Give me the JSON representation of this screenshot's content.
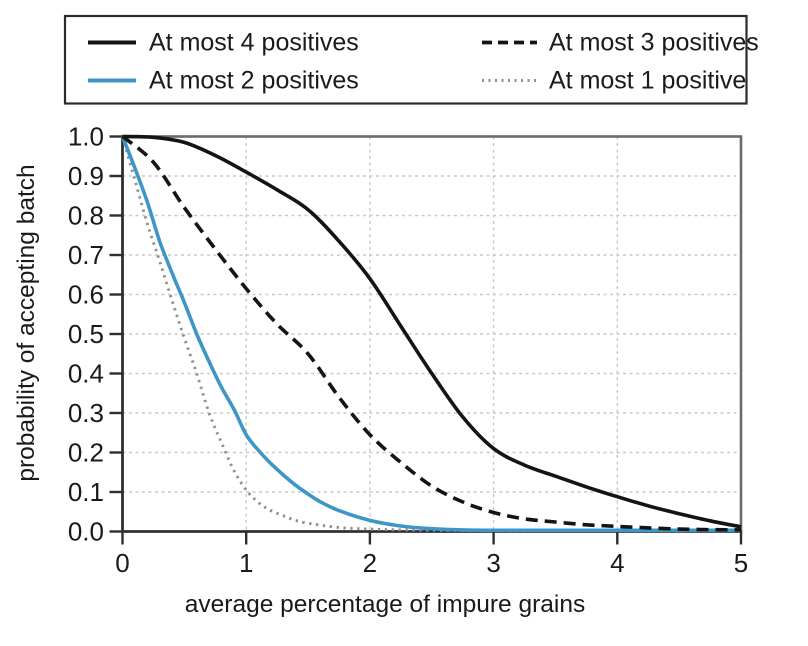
{
  "chart_data": {
    "type": "line",
    "title": "",
    "xlabel": "average percentage of impure grains",
    "ylabel": "probability of accepting batch",
    "xlim": [
      0,
      5
    ],
    "ylim": [
      0,
      1
    ],
    "grid": true,
    "legend_position": "top-box",
    "x_ticks": [
      {
        "v": 0,
        "label": "0"
      },
      {
        "v": 1,
        "label": "1"
      },
      {
        "v": 2,
        "label": "2"
      },
      {
        "v": 3,
        "label": "3"
      },
      {
        "v": 4,
        "label": "4"
      },
      {
        "v": 5,
        "label": "5"
      }
    ],
    "y_ticks": [
      {
        "v": 1.0,
        "label": "1.0"
      },
      {
        "v": 0.9,
        "label": "0.9"
      },
      {
        "v": 0.8,
        "label": "0.8"
      },
      {
        "v": 0.7,
        "label": "0.7"
      },
      {
        "v": 0.6,
        "label": "0.6"
      },
      {
        "v": 0.5,
        "label": "0.5"
      },
      {
        "v": 0.4,
        "label": "0.4"
      },
      {
        "v": 0.3,
        "label": "0.3"
      },
      {
        "v": 0.2,
        "label": "0.2"
      },
      {
        "v": 0.1,
        "label": "0.1"
      },
      {
        "v": 0.0,
        "label": "0.0"
      }
    ],
    "legend_rows": [
      [
        0,
        1
      ],
      [
        2,
        3
      ]
    ],
    "series": [
      {
        "name": "At most 4 positives",
        "style": "solid",
        "color": "#141414",
        "x": [
          0,
          0.25,
          0.5,
          0.75,
          1,
          1.25,
          1.5,
          1.75,
          2,
          2.25,
          2.5,
          2.75,
          3,
          3.25,
          3.5,
          3.75,
          4,
          4.25,
          4.5,
          4.75,
          5
        ],
        "y": [
          1,
          0.998,
          0.985,
          0.952,
          0.91,
          0.865,
          0.815,
          0.735,
          0.64,
          0.52,
          0.4,
          0.29,
          0.21,
          0.168,
          0.14,
          0.113,
          0.088,
          0.065,
          0.045,
          0.027,
          0.012
        ]
      },
      {
        "name": "At most 3 positives",
        "style": "dashed",
        "color": "#141414",
        "x": [
          0,
          0.25,
          0.5,
          0.75,
          1,
          1.25,
          1.5,
          1.75,
          2,
          2.25,
          2.5,
          2.75,
          3,
          3.25,
          3.5,
          3.75,
          4,
          4.5,
          5
        ],
        "y": [
          1,
          0.935,
          0.82,
          0.715,
          0.615,
          0.525,
          0.45,
          0.34,
          0.245,
          0.175,
          0.115,
          0.075,
          0.048,
          0.032,
          0.024,
          0.017,
          0.013,
          0.006,
          0.004
        ]
      },
      {
        "name": "At most 2 positives",
        "style": "solid",
        "color": "#3e96c8",
        "x": [
          0,
          0.1,
          0.2,
          0.3,
          0.4,
          0.5,
          0.6,
          0.7,
          0.8,
          0.9,
          1,
          1.1,
          1.2,
          1.3,
          1.4,
          1.5,
          1.6,
          1.75,
          2,
          2.25,
          2.5,
          2.75,
          3,
          3.5,
          4,
          4.5,
          5
        ],
        "y": [
          1,
          0.92,
          0.835,
          0.735,
          0.655,
          0.58,
          0.5,
          0.43,
          0.365,
          0.31,
          0.245,
          0.205,
          0.172,
          0.143,
          0.117,
          0.095,
          0.075,
          0.053,
          0.028,
          0.014,
          0.007,
          0.004,
          0.003,
          0.003,
          0.003,
          0.003,
          0.003
        ]
      },
      {
        "name": "At most 1 positive",
        "style": "dotted",
        "color": "#8f8f8f",
        "x": [
          0,
          0.1,
          0.2,
          0.3,
          0.4,
          0.5,
          0.6,
          0.7,
          0.8,
          0.9,
          1,
          1.1,
          1.2,
          1.3,
          1.4,
          1.5,
          1.75,
          2,
          2.25,
          2.5,
          3,
          3.5,
          4,
          4.5,
          5
        ],
        "y": [
          1,
          0.89,
          0.78,
          0.685,
          0.585,
          0.49,
          0.4,
          0.3,
          0.225,
          0.155,
          0.105,
          0.073,
          0.053,
          0.04,
          0.028,
          0.021,
          0.01,
          0.006,
          0.004,
          0.003,
          0.002,
          0.002,
          0.002,
          0.002,
          0.002
        ]
      }
    ],
    "colors": {
      "axis": "#2e2e2e",
      "plot_border": "#6b6b6b",
      "grid": "#c9c9c9",
      "legend_border": "#2b2b2b",
      "text": "#1a1a1a",
      "accent_blue": "#3e96c8",
      "curve_gray": "#8f8f8f"
    }
  }
}
